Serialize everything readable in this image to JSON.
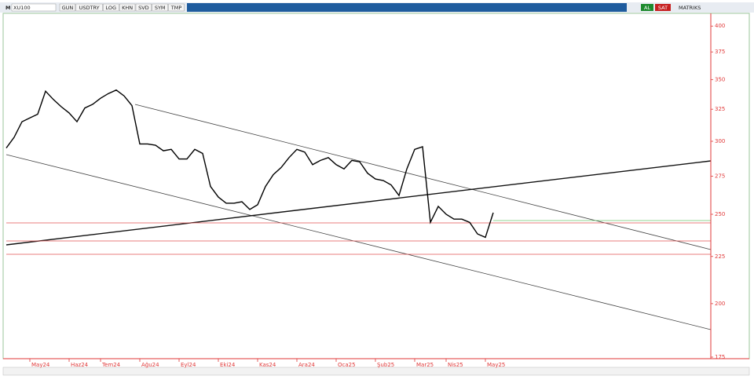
{
  "toolbar": {
    "symbol_prefix": "M",
    "symbol": "XU100",
    "buttons": [
      "GUN",
      "USDTRY",
      "LOG",
      "KHN",
      "SVD",
      "SYM",
      "TMP"
    ],
    "actions": [
      "AL",
      "SAT"
    ],
    "brand": "MATRIKS"
  },
  "chart_data": {
    "type": "line",
    "log_scale": true,
    "y_axis_side": "right",
    "color": "#000000",
    "axis_color": "#e03838",
    "categories": [
      null,
      null,
      null,
      "May24",
      null,
      null,
      null,
      null,
      "Haz24",
      null,
      null,
      null,
      "Tem24",
      null,
      null,
      null,
      null,
      "Ağu24",
      null,
      null,
      null,
      null,
      "Eyl24",
      null,
      null,
      null,
      null,
      "Eki24",
      null,
      null,
      null,
      null,
      "Kas24",
      null,
      null,
      null,
      null,
      "Ara24",
      null,
      null,
      null,
      null,
      "Oca25",
      null,
      null,
      null,
      null,
      "Şub25",
      null,
      null,
      null,
      null,
      "Mar25",
      null,
      null,
      null,
      "Nis25",
      null,
      null,
      null,
      null,
      "May25",
      null
    ],
    "values": [
      295,
      303,
      315,
      318,
      321,
      340,
      333,
      327,
      322,
      315,
      326,
      329,
      334,
      338,
      341,
      336,
      328,
      298,
      298,
      297,
      293,
      294,
      287,
      287,
      294,
      291,
      268,
      261,
      257,
      257,
      258,
      253,
      256,
      268,
      276,
      281,
      288,
      294,
      292,
      283,
      286,
      288,
      283,
      280,
      286,
      285,
      277,
      273,
      272,
      269,
      262,
      280,
      294,
      296,
      245,
      255,
      250,
      247,
      247,
      245,
      238,
      236,
      251
    ],
    "ylim": [
      175,
      417
    ],
    "yticks": [
      175,
      200,
      225,
      250,
      275,
      300,
      325,
      350,
      375,
      400
    ]
  }
}
